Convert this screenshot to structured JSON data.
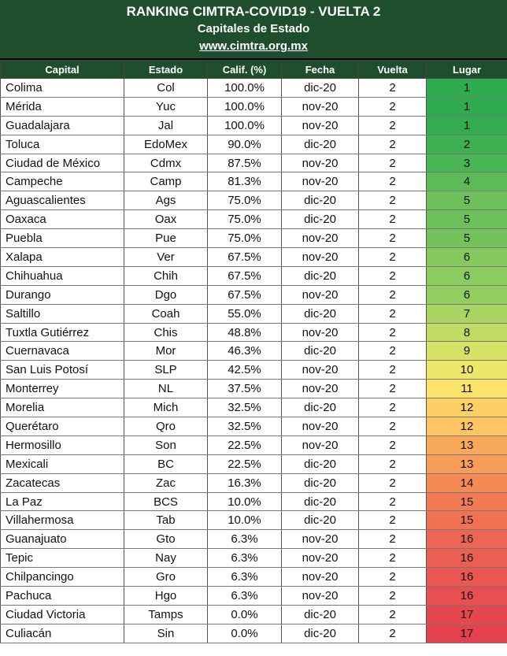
{
  "header": {
    "title": "RANKING CIMTRA-COVID19 - VUELTA 2",
    "subtitle": "Capitales de Estado",
    "website": "www.cimtra.org.mx"
  },
  "columns": [
    "Capital",
    "Estado",
    "Calif. (%)",
    "Fecha",
    "Vuelta",
    "Lugar"
  ],
  "rows": [
    {
      "capital": "Colima",
      "estado": "Col",
      "calif": "100.0%",
      "fecha": "dic-20",
      "vuelta": "2",
      "lugar": "1",
      "color": "#2eaa4f"
    },
    {
      "capital": "Mérida",
      "estado": "Yuc",
      "calif": "100.0%",
      "fecha": "nov-20",
      "vuelta": "2",
      "lugar": "1",
      "color": "#2eaa4f"
    },
    {
      "capital": "Guadalajara",
      "estado": "Jal",
      "calif": "100.0%",
      "fecha": "nov-20",
      "vuelta": "2",
      "lugar": "1",
      "color": "#33ac50"
    },
    {
      "capital": "Toluca",
      "estado": "EdoMex",
      "calif": "90.0%",
      "fecha": "dic-20",
      "vuelta": "2",
      "lugar": "2",
      "color": "#3db052"
    },
    {
      "capital": "Ciudad de México",
      "estado": "Cdmx",
      "calif": "87.5%",
      "fecha": "nov-20",
      "vuelta": "2",
      "lugar": "3",
      "color": "#4ab554"
    },
    {
      "capital": "Campeche",
      "estado": "Camp",
      "calif": "81.3%",
      "fecha": "nov-20",
      "vuelta": "2",
      "lugar": "4",
      "color": "#5cbb57"
    },
    {
      "capital": "Aguascalientes",
      "estado": "Ags",
      "calif": "75.0%",
      "fecha": "dic-20",
      "vuelta": "2",
      "lugar": "5",
      "color": "#6ec05a"
    },
    {
      "capital": "Oaxaca",
      "estado": "Oax",
      "calif": "75.0%",
      "fecha": "dic-20",
      "vuelta": "2",
      "lugar": "5",
      "color": "#6ec05a"
    },
    {
      "capital": "Puebla",
      "estado": "Pue",
      "calif": "75.0%",
      "fecha": "nov-20",
      "vuelta": "2",
      "lugar": "5",
      "color": "#74c25b"
    },
    {
      "capital": "Xalapa",
      "estado": "Ver",
      "calif": "67.5%",
      "fecha": "nov-20",
      "vuelta": "2",
      "lugar": "6",
      "color": "#86c85e"
    },
    {
      "capital": "Chihuahua",
      "estado": "Chih",
      "calif": "67.5%",
      "fecha": "dic-20",
      "vuelta": "2",
      "lugar": "6",
      "color": "#8ccb5f"
    },
    {
      "capital": "Durango",
      "estado": "Dgo",
      "calif": "67.5%",
      "fecha": "nov-20",
      "vuelta": "2",
      "lugar": "6",
      "color": "#92cd60"
    },
    {
      "capital": "Saltillo",
      "estado": "Coah",
      "calif": "55.0%",
      "fecha": "dic-20",
      "vuelta": "2",
      "lugar": "7",
      "color": "#a9d462"
    },
    {
      "capital": "Tuxtla Gutiérrez",
      "estado": "Chis",
      "calif": "48.8%",
      "fecha": "nov-20",
      "vuelta": "2",
      "lugar": "8",
      "color": "#c1dc65"
    },
    {
      "capital": "Cuernavaca",
      "estado": "Mor",
      "calif": "46.3%",
      "fecha": "dic-20",
      "vuelta": "2",
      "lugar": "9",
      "color": "#d6e366"
    },
    {
      "capital": "San Luis Potosí",
      "estado": "SLP",
      "calif": "42.5%",
      "fecha": "nov-20",
      "vuelta": "2",
      "lugar": "10",
      "color": "#ede86a"
    },
    {
      "capital": "Monterrey",
      "estado": "NL",
      "calif": "37.5%",
      "fecha": "nov-20",
      "vuelta": "2",
      "lugar": "11",
      "color": "#fde36b"
    },
    {
      "capital": "Morelia",
      "estado": "Mich",
      "calif": "32.5%",
      "fecha": "dic-20",
      "vuelta": "2",
      "lugar": "12",
      "color": "#fdd064"
    },
    {
      "capital": "Querétaro",
      "estado": "Qro",
      "calif": "32.5%",
      "fecha": "nov-20",
      "vuelta": "2",
      "lugar": "12",
      "color": "#fcc561"
    },
    {
      "capital": "Hermosillo",
      "estado": "Son",
      "calif": "22.5%",
      "fecha": "nov-20",
      "vuelta": "2",
      "lugar": "13",
      "color": "#f9a95c"
    },
    {
      "capital": "Mexicali",
      "estado": "BC",
      "calif": "22.5%",
      "fecha": "dic-20",
      "vuelta": "2",
      "lugar": "13",
      "color": "#f89c5a"
    },
    {
      "capital": "Zacatecas",
      "estado": "Zac",
      "calif": "16.3%",
      "fecha": "dic-20",
      "vuelta": "2",
      "lugar": "14",
      "color": "#f58a57"
    },
    {
      "capital": "La Paz",
      "estado": "BCS",
      "calif": "10.0%",
      "fecha": "dic-20",
      "vuelta": "2",
      "lugar": "15",
      "color": "#f27a55"
    },
    {
      "capital": "Villahermosa",
      "estado": "Tab",
      "calif": "10.0%",
      "fecha": "dic-20",
      "vuelta": "2",
      "lugar": "15",
      "color": "#f07253"
    },
    {
      "capital": "Guanajuato",
      "estado": "Gto",
      "calif": "6.3%",
      "fecha": "nov-20",
      "vuelta": "2",
      "lugar": "16",
      "color": "#ed6553"
    },
    {
      "capital": "Tepic",
      "estado": "Nay",
      "calif": "6.3%",
      "fecha": "nov-20",
      "vuelta": "2",
      "lugar": "16",
      "color": "#eb5e52"
    },
    {
      "capital": "Chilpancingo",
      "estado": "Gro",
      "calif": "6.3%",
      "fecha": "nov-20",
      "vuelta": "2",
      "lugar": "16",
      "color": "#ea5751"
    },
    {
      "capital": "Pachuca",
      "estado": "Hgo",
      "calif": "6.3%",
      "fecha": "nov-20",
      "vuelta": "2",
      "lugar": "16",
      "color": "#e84f50"
    },
    {
      "capital": "Ciudad Victoria",
      "estado": "Tamps",
      "calif": "0.0%",
      "fecha": "dic-20",
      "vuelta": "2",
      "lugar": "17",
      "color": "#e6474f"
    },
    {
      "capital": "Culiacán",
      "estado": "Sin",
      "calif": "0.0%",
      "fecha": "dic-20",
      "vuelta": "2",
      "lugar": "17",
      "color": "#e4404e"
    }
  ]
}
